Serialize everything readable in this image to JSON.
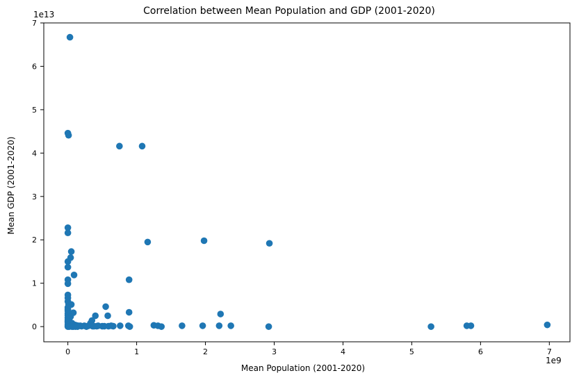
{
  "chart_data": {
    "type": "scatter",
    "title": "Correlation between Mean Population and GDP (2001-2020)",
    "xlabel": "Mean Population (2001-2020)",
    "ylabel": "Mean GDP (2001-2020)",
    "x_offset_label": "1e9",
    "y_offset_label": "1e13",
    "x_scale_exponent": 9,
    "y_scale_exponent": 13,
    "xlim": [
      -0.35,
      7.3
    ],
    "ylim": [
      -0.35,
      7.0
    ],
    "x_ticks": [
      0,
      1,
      2,
      3,
      4,
      5,
      6,
      7
    ],
    "y_ticks": [
      0,
      1,
      2,
      3,
      4,
      5,
      6,
      7
    ],
    "x_tick_labels": [
      "0",
      "1",
      "2",
      "3",
      "4",
      "5",
      "6",
      "7"
    ],
    "y_tick_labels": [
      "0",
      "1",
      "2",
      "3",
      "4",
      "5",
      "6",
      "7"
    ],
    "grid": false,
    "legend": false,
    "marker_color": "#1f77b4",
    "points": [
      [
        0.03,
        6.67
      ],
      [
        0.0,
        4.46
      ],
      [
        0.01,
        4.41
      ],
      [
        0.75,
        4.16
      ],
      [
        1.08,
        4.16
      ],
      [
        0.0,
        2.28
      ],
      [
        0.0,
        2.16
      ],
      [
        1.16,
        1.95
      ],
      [
        1.98,
        1.98
      ],
      [
        2.93,
        1.92
      ],
      [
        0.05,
        1.73
      ],
      [
        0.04,
        1.59
      ],
      [
        0.0,
        1.5
      ],
      [
        0.0,
        1.37
      ],
      [
        0.09,
        1.19
      ],
      [
        0.0,
        1.08
      ],
      [
        0.0,
        0.99
      ],
      [
        0.89,
        1.08
      ],
      [
        0.0,
        0.73
      ],
      [
        0.0,
        0.66
      ],
      [
        0.0,
        0.58
      ],
      [
        0.01,
        0.52
      ],
      [
        0.05,
        0.51
      ],
      [
        0.55,
        0.46
      ],
      [
        0.0,
        0.44
      ],
      [
        0.0,
        0.4
      ],
      [
        0.0,
        0.36
      ],
      [
        0.89,
        0.33
      ],
      [
        0.08,
        0.32
      ],
      [
        0.0,
        0.3
      ],
      [
        2.22,
        0.29
      ],
      [
        0.0,
        0.26
      ],
      [
        0.4,
        0.25
      ],
      [
        0.58,
        0.25
      ],
      [
        0.04,
        0.23
      ],
      [
        0.0,
        0.2
      ],
      [
        0.02,
        0.18
      ],
      [
        0.0,
        0.15
      ],
      [
        0.35,
        0.14
      ],
      [
        0.0,
        0.12
      ],
      [
        0.0,
        0.1
      ],
      [
        0.06,
        0.08
      ],
      [
        0.33,
        0.08
      ],
      [
        0.02,
        0.06
      ],
      [
        0.0,
        0.05
      ],
      [
        0.1,
        0.04
      ],
      [
        0.12,
        0.03
      ],
      [
        6.97,
        0.04
      ],
      [
        1.25,
        0.03
      ],
      [
        1.31,
        0.02
      ],
      [
        1.66,
        0.02
      ],
      [
        1.96,
        0.02
      ],
      [
        2.2,
        0.02
      ],
      [
        2.37,
        0.02
      ],
      [
        5.8,
        0.02
      ],
      [
        5.86,
        0.02
      ],
      [
        0.0,
        0.02
      ],
      [
        0.04,
        0.02
      ],
      [
        0.15,
        0.02
      ],
      [
        0.18,
        0.02
      ],
      [
        0.24,
        0.02
      ],
      [
        0.3,
        0.02
      ],
      [
        0.44,
        0.02
      ],
      [
        0.63,
        0.02
      ],
      [
        0.76,
        0.02
      ],
      [
        0.88,
        0.02
      ],
      [
        0.2,
        0.01
      ],
      [
        0.36,
        0.01
      ],
      [
        0.38,
        0.01
      ],
      [
        0.42,
        0.01
      ],
      [
        0.5,
        0.01
      ],
      [
        0.53,
        0.01
      ],
      [
        0.59,
        0.01
      ],
      [
        0.66,
        0.01
      ],
      [
        1.36,
        0.0
      ],
      [
        2.92,
        0.0
      ],
      [
        5.28,
        0.0
      ],
      [
        0.9,
        0.0
      ],
      [
        0.0,
        0.0
      ],
      [
        0.02,
        0.0
      ],
      [
        0.06,
        0.0
      ],
      [
        0.08,
        0.0
      ],
      [
        0.11,
        0.0
      ],
      [
        0.14,
        0.0
      ],
      [
        0.27,
        0.0
      ]
    ]
  }
}
